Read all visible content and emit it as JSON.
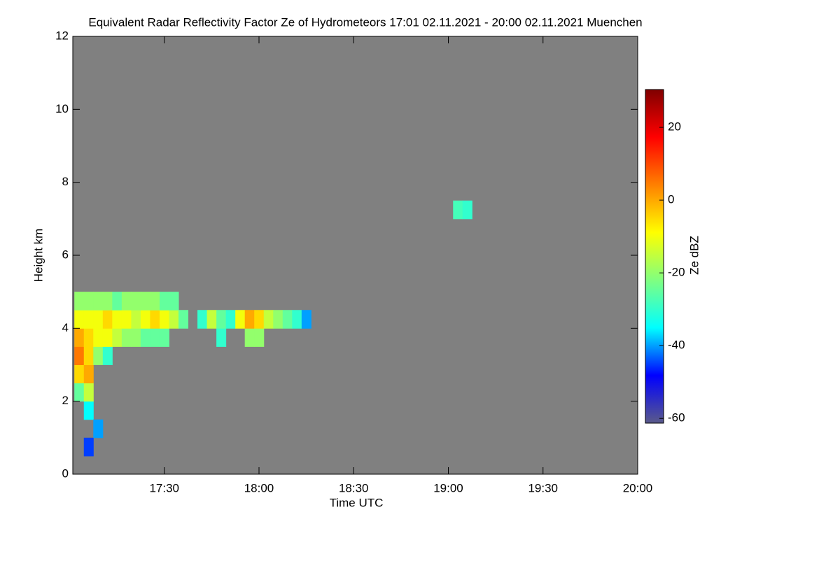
{
  "chart_data": {
    "type": "heatmap",
    "title": "Equivalent Radar Reflectivity Factor Ze of Hydrometeors   17:01 02.11.2021 - 20:00 02.11.2021 Muenchen",
    "x_label": "Time UTC",
    "y_label": "Height km",
    "colorbar_label": "Ze dBZ",
    "background": "#808080",
    "colormap": [
      "#5a5a8a",
      "#0000ff",
      "#00ffff",
      "#80ff80",
      "#ffff00",
      "#ff8000",
      "#ff0000",
      "#800000"
    ],
    "xlim": [
      17.0167,
      20
    ],
    "ylim": [
      0,
      12
    ],
    "clim": [
      -61.3,
      30.4
    ],
    "xticks": [
      {
        "value": 17.5,
        "label": "17:30"
      },
      {
        "value": 18,
        "label": "18:00"
      },
      {
        "value": 18.5,
        "label": "18:30"
      },
      {
        "value": 19,
        "label": "19:00"
      },
      {
        "value": 19.5,
        "label": "19:30"
      },
      {
        "value": 20,
        "label": "20:00"
      }
    ],
    "yticks": [
      0,
      2,
      4,
      6,
      8,
      10,
      12
    ],
    "cticks": [
      -60,
      -40,
      -20,
      0,
      20
    ],
    "x": [
      17.05,
      17.05,
      17.05,
      17.05,
      17.05,
      17.05,
      17.1,
      17.1,
      17.1,
      17.1,
      17.1,
      17.1,
      17.1,
      17.15,
      17.15,
      17.15,
      17.15,
      17.2,
      17.2,
      17.2,
      17.2,
      17.25,
      17.25,
      17.25,
      17.3,
      17.3,
      17.3,
      17.35,
      17.35,
      17.35,
      17.4,
      17.4,
      17.4,
      17.45,
      17.45,
      17.45,
      17.5,
      17.5,
      17.5,
      17.55,
      17.55,
      17.6,
      17.7,
      17.75,
      17.8,
      17.8,
      17.85,
      17.9,
      17.95,
      17.95,
      18,
      18,
      18.05,
      18.1,
      18.15,
      18.2,
      18.25,
      19.05,
      19.1,
      17.1,
      17.15
    ],
    "y": [
      2.25,
      2.75,
      3.25,
      3.75,
      4.25,
      4.75,
      1.75,
      2.25,
      2.75,
      3.25,
      3.75,
      4.25,
      4.75,
      3.25,
      3.75,
      4.25,
      4.75,
      3.25,
      3.75,
      4.25,
      4.75,
      3.75,
      4.25,
      4.75,
      3.75,
      4.25,
      4.75,
      3.75,
      4.25,
      4.75,
      3.75,
      4.25,
      4.75,
      3.75,
      4.25,
      4.75,
      3.75,
      4.25,
      4.75,
      4.25,
      4.75,
      4.25,
      4.25,
      4.25,
      3.75,
      4.25,
      4.25,
      4.25,
      3.75,
      4.25,
      3.75,
      4.25,
      4.25,
      4.25,
      4.25,
      4.25,
      4.25,
      7.25,
      7.25,
      0.75,
      1.25
    ],
    "values": [
      -25,
      -5,
      5,
      0,
      -10,
      -20,
      -35,
      -15,
      0,
      -5,
      -5,
      -10,
      -20,
      -20,
      -10,
      -10,
      -20,
      -30,
      -10,
      -5,
      -20,
      -15,
      -10,
      -25,
      -20,
      -10,
      -20,
      -20,
      -15,
      -20,
      -25,
      -10,
      -20,
      -25,
      -5,
      -20,
      -25,
      -10,
      -25,
      -15,
      -25,
      -25,
      -30,
      -15,
      -30,
      -25,
      -30,
      -10,
      -20,
      0,
      -20,
      -5,
      -15,
      -20,
      -25,
      -30,
      -40,
      -28,
      -30,
      -45,
      -40
    ]
  }
}
